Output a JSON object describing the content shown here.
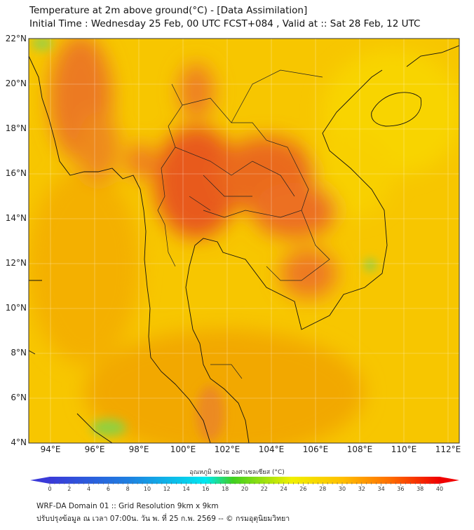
{
  "header": {
    "title": "Temperature at 2m above ground(°C) - [Data Assimilation]",
    "subtitle": "Initial Time : Wednesday 25 Feb, 00 UTC FCST+084 , Valid at :: Sat 28 Feb, 12 UTC"
  },
  "map": {
    "lat_labels": [
      "22°N",
      "20°N",
      "18°N",
      "16°N",
      "14°N",
      "12°N",
      "10°N",
      "8°N",
      "6°N",
      "4°N"
    ],
    "lon_labels": [
      "94°E",
      "96°E",
      "98°E",
      "100°E",
      "102°E",
      "104°E",
      "106°E",
      "108°E",
      "110°E",
      "112°E"
    ],
    "extent": {
      "lon_min": 93,
      "lon_max": 112.5,
      "lat_min": 4,
      "lat_max": 22
    }
  },
  "colorbar": {
    "title": "อุณหภูมิ หน่วย องศาเซลเซียส (°C)",
    "ticks": [
      "0",
      "2",
      "4",
      "6",
      "8",
      "10",
      "12",
      "14",
      "16",
      "18",
      "20",
      "22",
      "24",
      "26",
      "28",
      "30",
      "32",
      "34",
      "36",
      "38",
      "40"
    ],
    "min": 0,
    "max": 40,
    "colors": [
      "#3a3ad8",
      "#1f7fe0",
      "#00e8f0",
      "#40d020",
      "#f0f000",
      "#ffc000",
      "#ff7000",
      "#f00000"
    ]
  },
  "footer": {
    "line1": "WRF-DA Domain 01 :: Grid Resolution 9km x 9km",
    "line2": "ปรับปรุงข้อมูล ณ เวลา 07:00น. วัน พ. ที่ 25 ก.พ. 2569 -- © กรมอุตุนิยมวิทยา"
  }
}
